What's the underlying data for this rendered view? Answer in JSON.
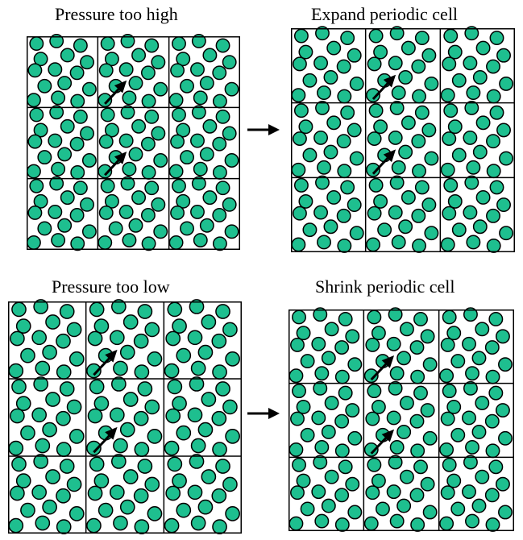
{
  "panels": [
    {
      "title": "Pressure too high"
    },
    {
      "title": "Expand periodic cell"
    },
    {
      "title": "Pressure too low"
    },
    {
      "title": "Shrink periodic cell"
    }
  ],
  "colors": {
    "particle_fill": "#1ebf8f",
    "particle_stroke": "#000000",
    "line": "#000000"
  },
  "grid": {
    "rows": 3,
    "cols": 3
  }
}
